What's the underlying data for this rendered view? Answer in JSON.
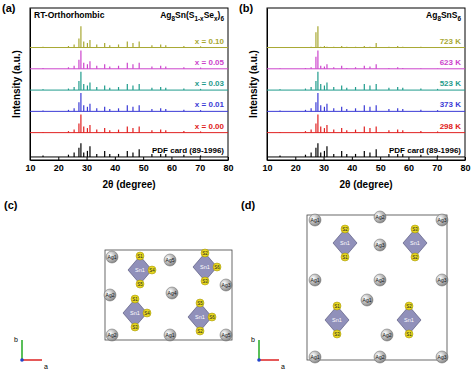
{
  "chart_data": [
    {
      "type": "stick",
      "panel_label": "(a)",
      "title": "RT-Orthorhombic",
      "subtitle": "Ag8Sn(S1-xSex)6",
      "x_label": "2θ (degree)",
      "y_label": "Intensity (a.u.)",
      "xlim": [
        10,
        80
      ],
      "xticks": [
        10,
        20,
        30,
        40,
        50,
        60,
        70,
        80
      ],
      "ylim": [
        0,
        100
      ],
      "tick_labels": "x",
      "x": [
        14.6,
        23.6,
        25.6,
        27.3,
        28.0,
        29.0,
        30.3,
        31.2,
        33.6,
        36.4,
        38.2,
        41.3,
        44.4,
        46.4,
        48.6,
        53.1,
        56.2,
        58.0,
        64.4,
        70.3
      ],
      "series": [
        {
          "name": "x = 0.10",
          "color": "#a8a832",
          "baseline": 74,
          "values": [
            74.5,
            75,
            76,
            80,
            88,
            78,
            77,
            79,
            76,
            77,
            75.5,
            76,
            78,
            77,
            78,
            75.5,
            76,
            75.5,
            75,
            74.8
          ]
        },
        {
          "name": "x = 0.05",
          "color": "#cc44cc",
          "baseline": 60,
          "values": [
            60.5,
            61,
            62,
            66,
            72,
            64,
            63,
            65,
            62,
            63,
            61.5,
            62,
            64,
            63,
            64,
            61.5,
            62,
            61.5,
            61,
            60.8
          ]
        },
        {
          "name": "x = 0.03",
          "color": "#1f9c8c",
          "baseline": 46,
          "values": [
            46.5,
            47,
            48,
            52,
            58,
            50,
            49,
            51,
            48,
            49,
            47.5,
            48,
            50,
            49,
            50,
            47.5,
            48,
            47.5,
            47,
            46.8
          ]
        },
        {
          "name": "x = 0.01",
          "color": "#3b3bd6",
          "baseline": 32,
          "values": [
            32.5,
            33,
            34,
            38,
            44,
            36,
            35,
            37,
            34,
            35,
            33.5,
            34,
            36,
            35,
            36,
            33.5,
            34,
            33.5,
            33,
            32.8
          ]
        },
        {
          "name": "x = 0.00",
          "color": "#e02020",
          "baseline": 18,
          "values": [
            18.5,
            19,
            20,
            24,
            30,
            22,
            21,
            23,
            20,
            21,
            19.5,
            20,
            22,
            21,
            22,
            19.5,
            20,
            19.5,
            19,
            18.8
          ]
        },
        {
          "name": "PDF card (89-1996)",
          "color": "#000000",
          "baseline": 2,
          "values": [
            3,
            3.5,
            5,
            8,
            11,
            5,
            6,
            9,
            4,
            6,
            4,
            4,
            6,
            5,
            7,
            4,
            4,
            4,
            3.5,
            3
          ]
        }
      ]
    },
    {
      "type": "stick",
      "panel_label": "(b)",
      "title": "Ag8SnS6",
      "x_label": "2θ (degree)",
      "y_label": "Intensity (a.u.)",
      "xlim": [
        10,
        80
      ],
      "xticks": [
        10,
        20,
        30,
        40,
        50,
        60,
        70,
        80
      ],
      "ylim": [
        0,
        100
      ],
      "tick_labels": "x",
      "x": [
        14.6,
        23.6,
        25.6,
        27.3,
        28.0,
        29.0,
        30.3,
        31.2,
        33.6,
        36.4,
        38.2,
        41.3,
        44.4,
        46.4,
        48.6,
        53.1,
        56.2,
        58.0,
        64.4,
        70.3
      ],
      "series": [
        {
          "name": "723 K",
          "color": "#a8a832",
          "baseline": 74,
          "values": [
            74,
            74,
            74.5,
            84,
            88,
            74.5,
            75,
            74.5,
            74.5,
            75,
            74.5,
            74.5,
            75,
            74.5,
            77,
            74.5,
            75,
            74.5,
            74.5,
            74.2
          ]
        },
        {
          "name": "623 K",
          "color": "#cc44cc",
          "baseline": 60,
          "values": [
            60.3,
            60.5,
            61,
            68,
            72,
            62,
            61.5,
            63,
            61,
            62,
            60.5,
            61,
            62,
            61.5,
            63,
            60.5,
            61,
            60.5,
            60.3,
            60.2
          ]
        },
        {
          "name": "523 K",
          "color": "#1f9c8c",
          "baseline": 46,
          "values": [
            46.5,
            47,
            48,
            52,
            58,
            50,
            49,
            51,
            48,
            49,
            47.5,
            48,
            50,
            49,
            50,
            47.5,
            48,
            47.5,
            47,
            46.8
          ]
        },
        {
          "name": "373 K",
          "color": "#3b3bd6",
          "baseline": 32,
          "values": [
            32.5,
            33,
            34,
            38,
            44,
            36,
            35,
            37,
            34,
            35,
            33.5,
            34,
            36,
            35,
            36,
            33.5,
            34,
            33.5,
            33,
            32.8
          ]
        },
        {
          "name": "298 K",
          "color": "#e02020",
          "baseline": 18,
          "values": [
            18.5,
            19,
            20,
            24,
            30,
            22,
            21,
            23,
            20,
            21,
            19.5,
            20,
            22,
            21,
            22,
            19.5,
            20,
            19.5,
            19,
            18.8
          ]
        },
        {
          "name": "PDF card (89-1996)",
          "color": "#000000",
          "baseline": 2,
          "values": [
            3,
            3.5,
            5,
            8,
            11,
            5,
            6,
            9,
            4,
            6,
            4,
            4,
            6,
            5,
            7,
            4,
            4,
            4,
            3.5,
            3
          ]
        }
      ]
    }
  ],
  "diagrams": [
    {
      "label": "(c)",
      "axes": [
        "b",
        "a"
      ],
      "tetrahedra": [
        "Sn1",
        "Sn1",
        "Sn1",
        "Sn1"
      ],
      "sulfur": [
        "S1",
        "S4",
        "S5",
        "S2",
        "S6",
        "S3",
        "S1",
        "S4",
        "S3",
        "S5",
        "S6",
        "S2"
      ],
      "silver": [
        "Ag1",
        "Ag5",
        "Ag3",
        "Ag2",
        "Ag4",
        "Ag1",
        "Ag5",
        "Ag2"
      ]
    },
    {
      "label": "(d)",
      "axes": [
        "b",
        "a"
      ],
      "tetrahedra": [
        "Sn1",
        "Sn1",
        "Sn1",
        "Sn1"
      ],
      "sulfur": [
        "S2",
        "S1",
        "S3",
        "S2",
        "S1",
        "S3",
        "S2",
        "S1"
      ],
      "silver": [
        "Ag1",
        "Ag2",
        "Ag3",
        "Ag1",
        "Ag2",
        "Ag3",
        "Ag1",
        "Ag2",
        "Ag3",
        "Ag1",
        "Ag2",
        "Ag3"
      ]
    }
  ]
}
